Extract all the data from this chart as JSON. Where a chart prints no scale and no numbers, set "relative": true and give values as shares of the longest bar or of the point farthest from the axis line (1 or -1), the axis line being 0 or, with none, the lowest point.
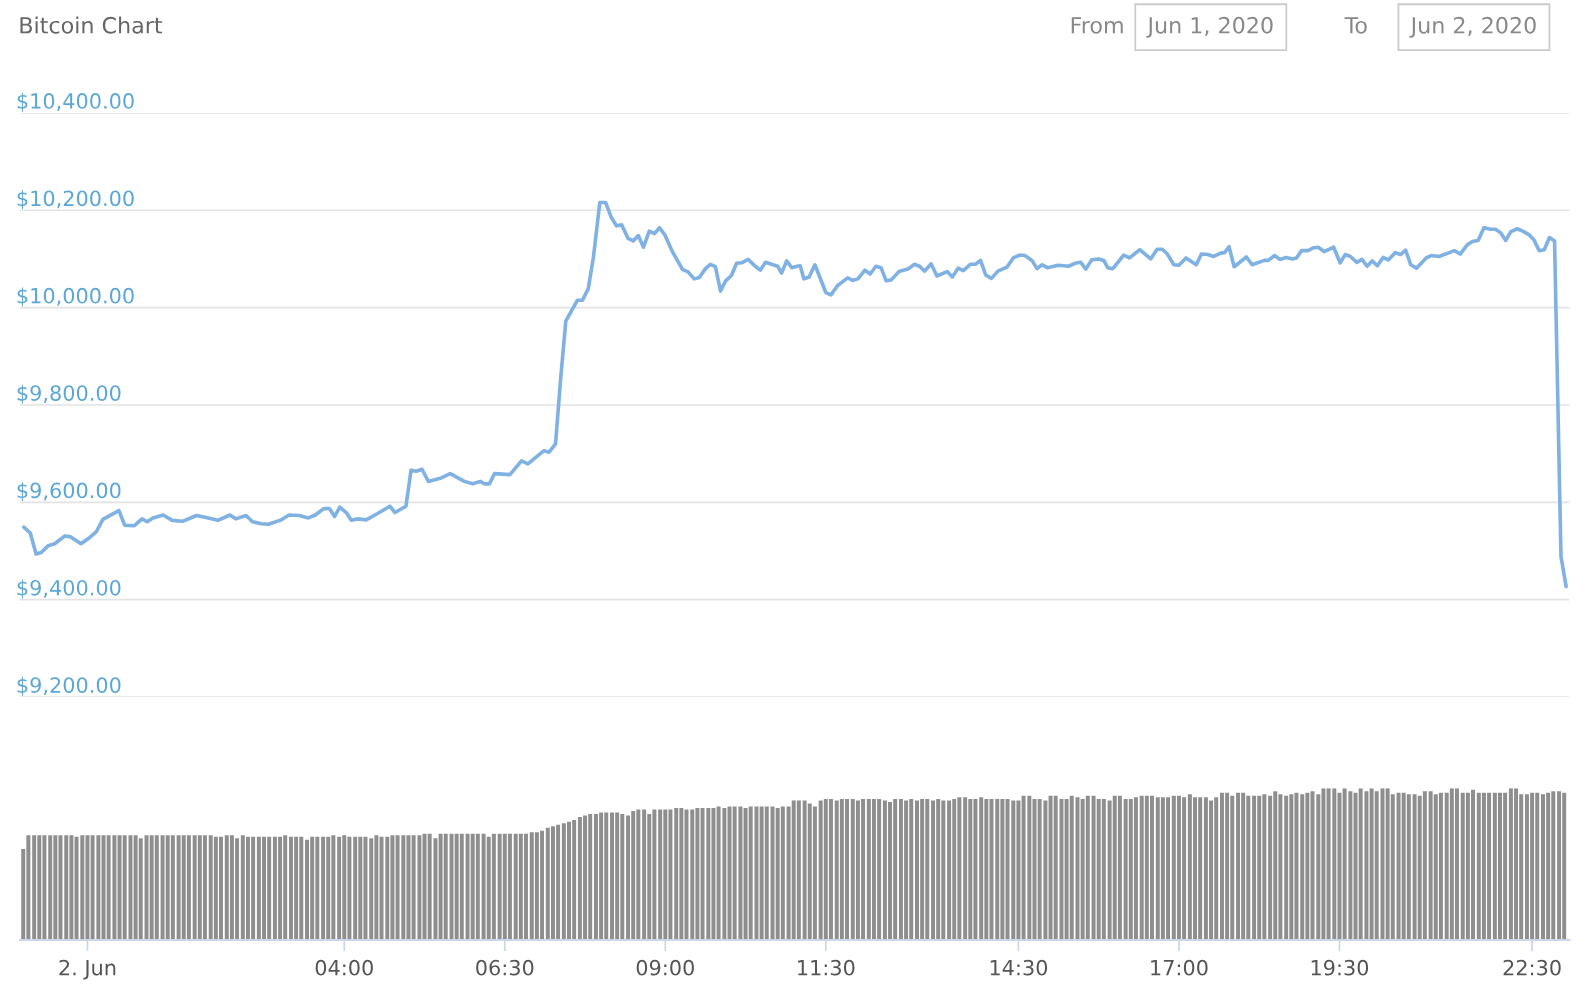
{
  "chart_data": [
    {
      "type": "line",
      "title": "Bitcoin Chart",
      "annotations": [
        "From",
        "Jun 1, 2020",
        "To",
        "Jun 2, 2020"
      ],
      "x": [
        -0.99,
        -0.89,
        -0.8,
        -0.72,
        -0.61,
        -0.51,
        -0.35,
        -0.26,
        -0.1,
        0.02,
        0.14,
        0.24,
        0.49,
        0.58,
        0.73,
        0.85,
        0.93,
        1.02,
        1.18,
        1.32,
        1.48,
        1.7,
        1.88,
        2.03,
        2.22,
        2.31,
        2.47,
        2.57,
        2.71,
        2.82,
        3.02,
        3.14,
        3.3,
        3.44,
        3.55,
        3.68,
        3.77,
        3.85,
        3.93,
        4.03,
        4.11,
        4.21,
        4.34,
        4.52,
        4.71,
        4.79,
        4.96,
        5.04,
        5.12,
        5.21,
        5.31,
        5.51,
        5.65,
        5.87,
        6.0,
        6.12,
        6.18,
        6.26,
        6.34,
        6.58,
        6.76,
        6.86,
        7.11,
        7.19,
        7.29,
        7.37,
        7.45,
        7.63,
        7.71,
        7.8,
        7.88,
        7.98,
        8.07,
        8.16,
        8.24,
        8.32,
        8.42,
        8.5,
        8.58,
        8.66,
        8.75,
        8.83,
        8.91,
        8.99,
        9.11,
        9.27,
        9.35,
        9.45,
        9.53,
        9.62,
        9.7,
        9.78,
        9.86,
        9.94,
        10.03,
        10.11,
        10.19,
        10.29,
        10.4,
        10.48,
        10.56,
        10.75,
        10.81,
        10.89,
        10.97,
        11.05,
        11.1,
        11.16,
        11.24,
        11.33,
        11.5,
        11.58,
        11.68,
        11.84,
        11.92,
        12.0,
        12.11,
        12.19,
        12.28,
        12.36,
        12.44,
        12.52,
        12.64,
        12.79,
        12.88,
        12.96,
        13.04,
        13.14,
        13.23,
        13.39,
        13.47,
        13.56,
        13.64,
        13.75,
        13.83,
        13.91,
        13.99,
        14.08,
        14.18,
        14.32,
        14.42,
        14.52,
        14.6,
        14.71,
        14.79,
        14.87,
        14.95,
        15.12,
        15.28,
        15.38,
        15.47,
        15.55,
        15.64,
        15.75,
        15.83,
        15.89,
        15.97,
        16.14,
        16.23,
        16.39,
        16.56,
        16.66,
        16.74,
        16.82,
        16.92,
        17.0,
        17.11,
        17.27,
        17.35,
        17.45,
        17.54,
        17.65,
        17.71,
        17.78,
        17.86,
        18.05,
        18.14,
        18.33,
        18.39,
        18.49,
        18.57,
        18.67,
        18.77,
        18.83,
        18.91,
        19.01,
        19.1,
        19.17,
        19.26,
        19.41,
        19.51,
        19.59,
        19.67,
        19.77,
        19.85,
        19.93,
        20.01,
        20.09,
        20.18,
        20.26,
        20.37,
        20.45,
        20.53,
        20.61,
        20.7,
        20.85,
        20.93,
        21.05,
        21.19,
        21.29,
        21.38,
        21.49,
        21.57,
        21.66,
        21.75,
        21.85,
        21.93,
        22.01,
        22.09,
        22.17,
        22.27,
        22.37,
        22.45,
        22.53,
        22.61,
        22.69,
        22.77,
        22.85,
        22.95,
        23.03
      ],
      "series": [
        {
          "color": "#7fb1e3",
          "values": [
            9549,
            9537,
            9494,
            9497,
            9511,
            9515,
            9531,
            9529,
            9515,
            9526,
            9540,
            9565,
            9583,
            9553,
            9552,
            9566,
            9560,
            9568,
            9574,
            9563,
            9561,
            9573,
            9568,
            9563,
            9574,
            9566,
            9573,
            9560,
            9556,
            9555,
            9564,
            9574,
            9573,
            9568,
            9574,
            9587,
            9587,
            9571,
            9590,
            9579,
            9563,
            9566,
            9564,
            9577,
            9592,
            9579,
            9592,
            9666,
            9664,
            9668,
            9643,
            9650,
            9659,
            9643,
            9638,
            9643,
            9638,
            9638,
            9659,
            9657,
            9685,
            9679,
            9706,
            9703,
            9720,
            9854,
            9972,
            10015,
            10015,
            10039,
            10103,
            10216,
            10216,
            10185,
            10168,
            10170,
            10142,
            10137,
            10148,
            10124,
            10157,
            10152,
            10164,
            10150,
            10115,
            10078,
            10074,
            10059,
            10062,
            10079,
            10089,
            10084,
            10034,
            10055,
            10066,
            10091,
            10092,
            10099,
            10085,
            10077,
            10093,
            10085,
            10071,
            10096,
            10082,
            10085,
            10086,
            10059,
            10063,
            10088,
            10031,
            10026,
            10045,
            10061,
            10056,
            10059,
            10077,
            10069,
            10085,
            10082,
            10055,
            10057,
            10074,
            10080,
            10089,
            10085,
            10075,
            10090,
            10065,
            10074,
            10063,
            10081,
            10076,
            10089,
            10089,
            10097,
            10067,
            10060,
            10075,
            10083,
            10102,
            10108,
            10107,
            10097,
            10080,
            10088,
            10082,
            10087,
            10085,
            10091,
            10093,
            10079,
            10098,
            10100,
            10097,
            10082,
            10080,
            10108,
            10102,
            10119,
            10100,
            10120,
            10120,
            10110,
            10088,
            10087,
            10102,
            10088,
            10110,
            10109,
            10105,
            10112,
            10113,
            10125,
            10084,
            10104,
            10088,
            10097,
            10097,
            10107,
            10099,
            10103,
            10100,
            10102,
            10117,
            10117,
            10123,
            10124,
            10115,
            10124,
            10092,
            10109,
            10105,
            10093,
            10099,
            10085,
            10096,
            10086,
            10103,
            10098,
            10113,
            10109,
            10118,
            10088,
            10081,
            10102,
            10107,
            10105,
            10112,
            10117,
            10110,
            10129,
            10136,
            10138,
            10164,
            10161,
            10161,
            10154,
            10138,
            10156,
            10162,
            10156,
            10150,
            10139,
            10117,
            10119,
            10144,
            10137,
            9489,
            9427
          ]
        }
      ],
      "xlim": [
        -1.05,
        23.08
      ],
      "ylim": [
        9200,
        10400
      ],
      "yticks": [
        {
          "value": 9200,
          "label": "$9,200.00"
        },
        {
          "value": 9400,
          "label": "$9,400.00"
        },
        {
          "value": 9600,
          "label": "$9,600.00"
        },
        {
          "value": 9800,
          "label": "$9,800.00"
        },
        {
          "value": 10000,
          "label": "$10,000.00"
        },
        {
          "value": 10200,
          "label": "$10,200.00"
        },
        {
          "value": 10400,
          "label": "$10,400.00"
        }
      ],
      "grid": "y",
      "tick_labels": "y",
      "marker": "none",
      "line_style": "solid"
    },
    {
      "type": "bar",
      "relative": true,
      "tick_labels": "x",
      "xlim": [
        -1.05,
        23.08
      ],
      "xticks": [
        {
          "value": 0,
          "label": "2. Jun"
        },
        {
          "value": 4,
          "label": "04:00"
        },
        {
          "value": 6.5,
          "label": "06:30"
        },
        {
          "value": 9,
          "label": "09:00"
        },
        {
          "value": 11.5,
          "label": "11:30"
        },
        {
          "value": 14.5,
          "label": "14:30"
        },
        {
          "value": 17,
          "label": "17:00"
        },
        {
          "value": 19.5,
          "label": "19:30"
        },
        {
          "value": 22.5,
          "label": "22:30"
        }
      ],
      "x": [
        -1,
        -0.92,
        -0.83,
        -0.75,
        -0.67,
        -0.58,
        -0.5,
        -0.42,
        -0.33,
        -0.25,
        -0.17,
        -0.08,
        0,
        0.08,
        0.17,
        0.25,
        0.33,
        0.42,
        0.5,
        0.58,
        0.67,
        0.75,
        0.83,
        0.92,
        1,
        1.08,
        1.17,
        1.25,
        1.33,
        1.42,
        1.5,
        1.58,
        1.67,
        1.75,
        1.83,
        1.92,
        2,
        2.08,
        2.17,
        2.25,
        2.33,
        2.42,
        2.5,
        2.58,
        2.67,
        2.75,
        2.83,
        2.92,
        3,
        3.08,
        3.17,
        3.25,
        3.33,
        3.42,
        3.5,
        3.58,
        3.67,
        3.75,
        3.83,
        3.92,
        4,
        4.08,
        4.17,
        4.25,
        4.33,
        4.42,
        4.5,
        4.58,
        4.67,
        4.75,
        4.83,
        4.92,
        5,
        5.08,
        5.17,
        5.25,
        5.33,
        5.42,
        5.5,
        5.58,
        5.67,
        5.75,
        5.83,
        5.92,
        6,
        6.08,
        6.17,
        6.25,
        6.33,
        6.42,
        6.5,
        6.58,
        6.67,
        6.75,
        6.83,
        6.92,
        7,
        7.08,
        7.17,
        7.25,
        7.33,
        7.42,
        7.5,
        7.58,
        7.67,
        7.75,
        7.83,
        7.92,
        8,
        8.08,
        8.17,
        8.25,
        8.33,
        8.42,
        8.5,
        8.58,
        8.67,
        8.75,
        8.83,
        8.92,
        9,
        9.08,
        9.17,
        9.25,
        9.33,
        9.42,
        9.5,
        9.58,
        9.67,
        9.75,
        9.83,
        9.92,
        10,
        10.08,
        10.17,
        10.25,
        10.33,
        10.42,
        10.5,
        10.58,
        10.67,
        10.75,
        10.83,
        10.92,
        11,
        11.08,
        11.17,
        11.25,
        11.33,
        11.42,
        11.5,
        11.58,
        11.67,
        11.75,
        11.83,
        11.92,
        12,
        12.08,
        12.17,
        12.25,
        12.33,
        12.42,
        12.5,
        12.58,
        12.67,
        12.75,
        12.83,
        12.92,
        13,
        13.08,
        13.17,
        13.25,
        13.33,
        13.42,
        13.5,
        13.58,
        13.67,
        13.75,
        13.83,
        13.92,
        14,
        14.08,
        14.17,
        14.25,
        14.33,
        14.42,
        14.5,
        14.58,
        14.67,
        14.75,
        14.83,
        14.92,
        15,
        15.08,
        15.17,
        15.25,
        15.33,
        15.42,
        15.5,
        15.58,
        15.67,
        15.75,
        15.83,
        15.92,
        16,
        16.08,
        16.17,
        16.25,
        16.33,
        16.42,
        16.5,
        16.58,
        16.67,
        16.75,
        16.83,
        16.92,
        17,
        17.08,
        17.17,
        17.25,
        17.33,
        17.42,
        17.5,
        17.58,
        17.67,
        17.75,
        17.83,
        17.92,
        18,
        18.08,
        18.17,
        18.25,
        18.33,
        18.42,
        18.5,
        18.58,
        18.67,
        18.75,
        18.83,
        18.92,
        19,
        19.08,
        19.17,
        19.25,
        19.33,
        19.42,
        19.5,
        19.58,
        19.67,
        19.75,
        19.83,
        19.92,
        20,
        20.08,
        20.17,
        20.25,
        20.33,
        20.42,
        20.5,
        20.58,
        20.67,
        20.75,
        20.83,
        20.92,
        21,
        21.08,
        21.17,
        21.25,
        21.33,
        21.42,
        21.5,
        21.58,
        21.67,
        21.75,
        21.83,
        21.92,
        22,
        22.08,
        22.17,
        22.25,
        22.33,
        22.42,
        22.5,
        22.58,
        22.67,
        22.75,
        22.83,
        22.92,
        23
      ],
      "series": [
        {
          "color": "#8e8e8e",
          "values": [
            0.6,
            0.69,
            0.69,
            0.69,
            0.69,
            0.69,
            0.69,
            0.69,
            0.69,
            0.69,
            0.68,
            0.69,
            0.69,
            0.69,
            0.69,
            0.69,
            0.69,
            0.69,
            0.69,
            0.69,
            0.69,
            0.69,
            0.67,
            0.69,
            0.69,
            0.69,
            0.69,
            0.69,
            0.69,
            0.69,
            0.69,
            0.69,
            0.69,
            0.69,
            0.69,
            0.69,
            0.68,
            0.68,
            0.69,
            0.69,
            0.67,
            0.69,
            0.68,
            0.68,
            0.68,
            0.68,
            0.68,
            0.68,
            0.68,
            0.69,
            0.68,
            0.68,
            0.68,
            0.66,
            0.68,
            0.68,
            0.68,
            0.68,
            0.69,
            0.68,
            0.69,
            0.68,
            0.68,
            0.68,
            0.68,
            0.67,
            0.69,
            0.68,
            0.68,
            0.69,
            0.69,
            0.69,
            0.69,
            0.69,
            0.69,
            0.7,
            0.7,
            0.67,
            0.7,
            0.7,
            0.7,
            0.7,
            0.7,
            0.7,
            0.7,
            0.7,
            0.7,
            0.68,
            0.7,
            0.7,
            0.7,
            0.7,
            0.7,
            0.7,
            0.7,
            0.71,
            0.71,
            0.72,
            0.74,
            0.75,
            0.76,
            0.77,
            0.78,
            0.79,
            0.81,
            0.82,
            0.83,
            0.83,
            0.84,
            0.84,
            0.84,
            0.84,
            0.83,
            0.82,
            0.85,
            0.86,
            0.86,
            0.83,
            0.86,
            0.86,
            0.86,
            0.86,
            0.87,
            0.87,
            0.86,
            0.86,
            0.87,
            0.87,
            0.87,
            0.87,
            0.88,
            0.87,
            0.88,
            0.88,
            0.88,
            0.87,
            0.88,
            0.88,
            0.88,
            0.88,
            0.88,
            0.87,
            0.88,
            0.88,
            0.92,
            0.92,
            0.92,
            0.9,
            0.88,
            0.92,
            0.93,
            0.93,
            0.92,
            0.93,
            0.93,
            0.93,
            0.92,
            0.93,
            0.93,
            0.93,
            0.93,
            0.92,
            0.91,
            0.93,
            0.93,
            0.92,
            0.93,
            0.92,
            0.93,
            0.93,
            0.92,
            0.93,
            0.92,
            0.92,
            0.93,
            0.94,
            0.94,
            0.93,
            0.93,
            0.94,
            0.93,
            0.93,
            0.93,
            0.93,
            0.93,
            0.92,
            0.92,
            0.95,
            0.95,
            0.93,
            0.93,
            0.92,
            0.95,
            0.95,
            0.93,
            0.93,
            0.95,
            0.94,
            0.93,
            0.95,
            0.95,
            0.93,
            0.93,
            0.92,
            0.95,
            0.95,
            0.93,
            0.93,
            0.94,
            0.95,
            0.95,
            0.95,
            0.94,
            0.94,
            0.94,
            0.95,
            0.95,
            0.94,
            0.96,
            0.94,
            0.94,
            0.94,
            0.92,
            0.94,
            0.97,
            0.97,
            0.95,
            0.97,
            0.97,
            0.95,
            0.95,
            0.95,
            0.96,
            0.95,
            0.98,
            0.96,
            0.95,
            0.96,
            0.97,
            0.96,
            0.97,
            0.98,
            0.96,
            1.0,
            1.0,
            1.0,
            0.97,
            1.0,
            0.98,
            0.97,
            1.0,
            0.98,
            1.0,
            0.98,
            1.0,
            1.0,
            0.96,
            0.97,
            0.97,
            0.96,
            0.96,
            0.95,
            0.98,
            0.98,
            0.96,
            0.97,
            0.97,
            1.0,
            1.0,
            0.97,
            0.97,
            0.99,
            0.97,
            0.97,
            0.97,
            0.97,
            0.97,
            0.97,
            1.0,
            1.0,
            0.96,
            0.96,
            0.97,
            0.97,
            0.96,
            0.97,
            0.98,
            0.98,
            0.97
          ]
        }
      ]
    }
  ]
}
